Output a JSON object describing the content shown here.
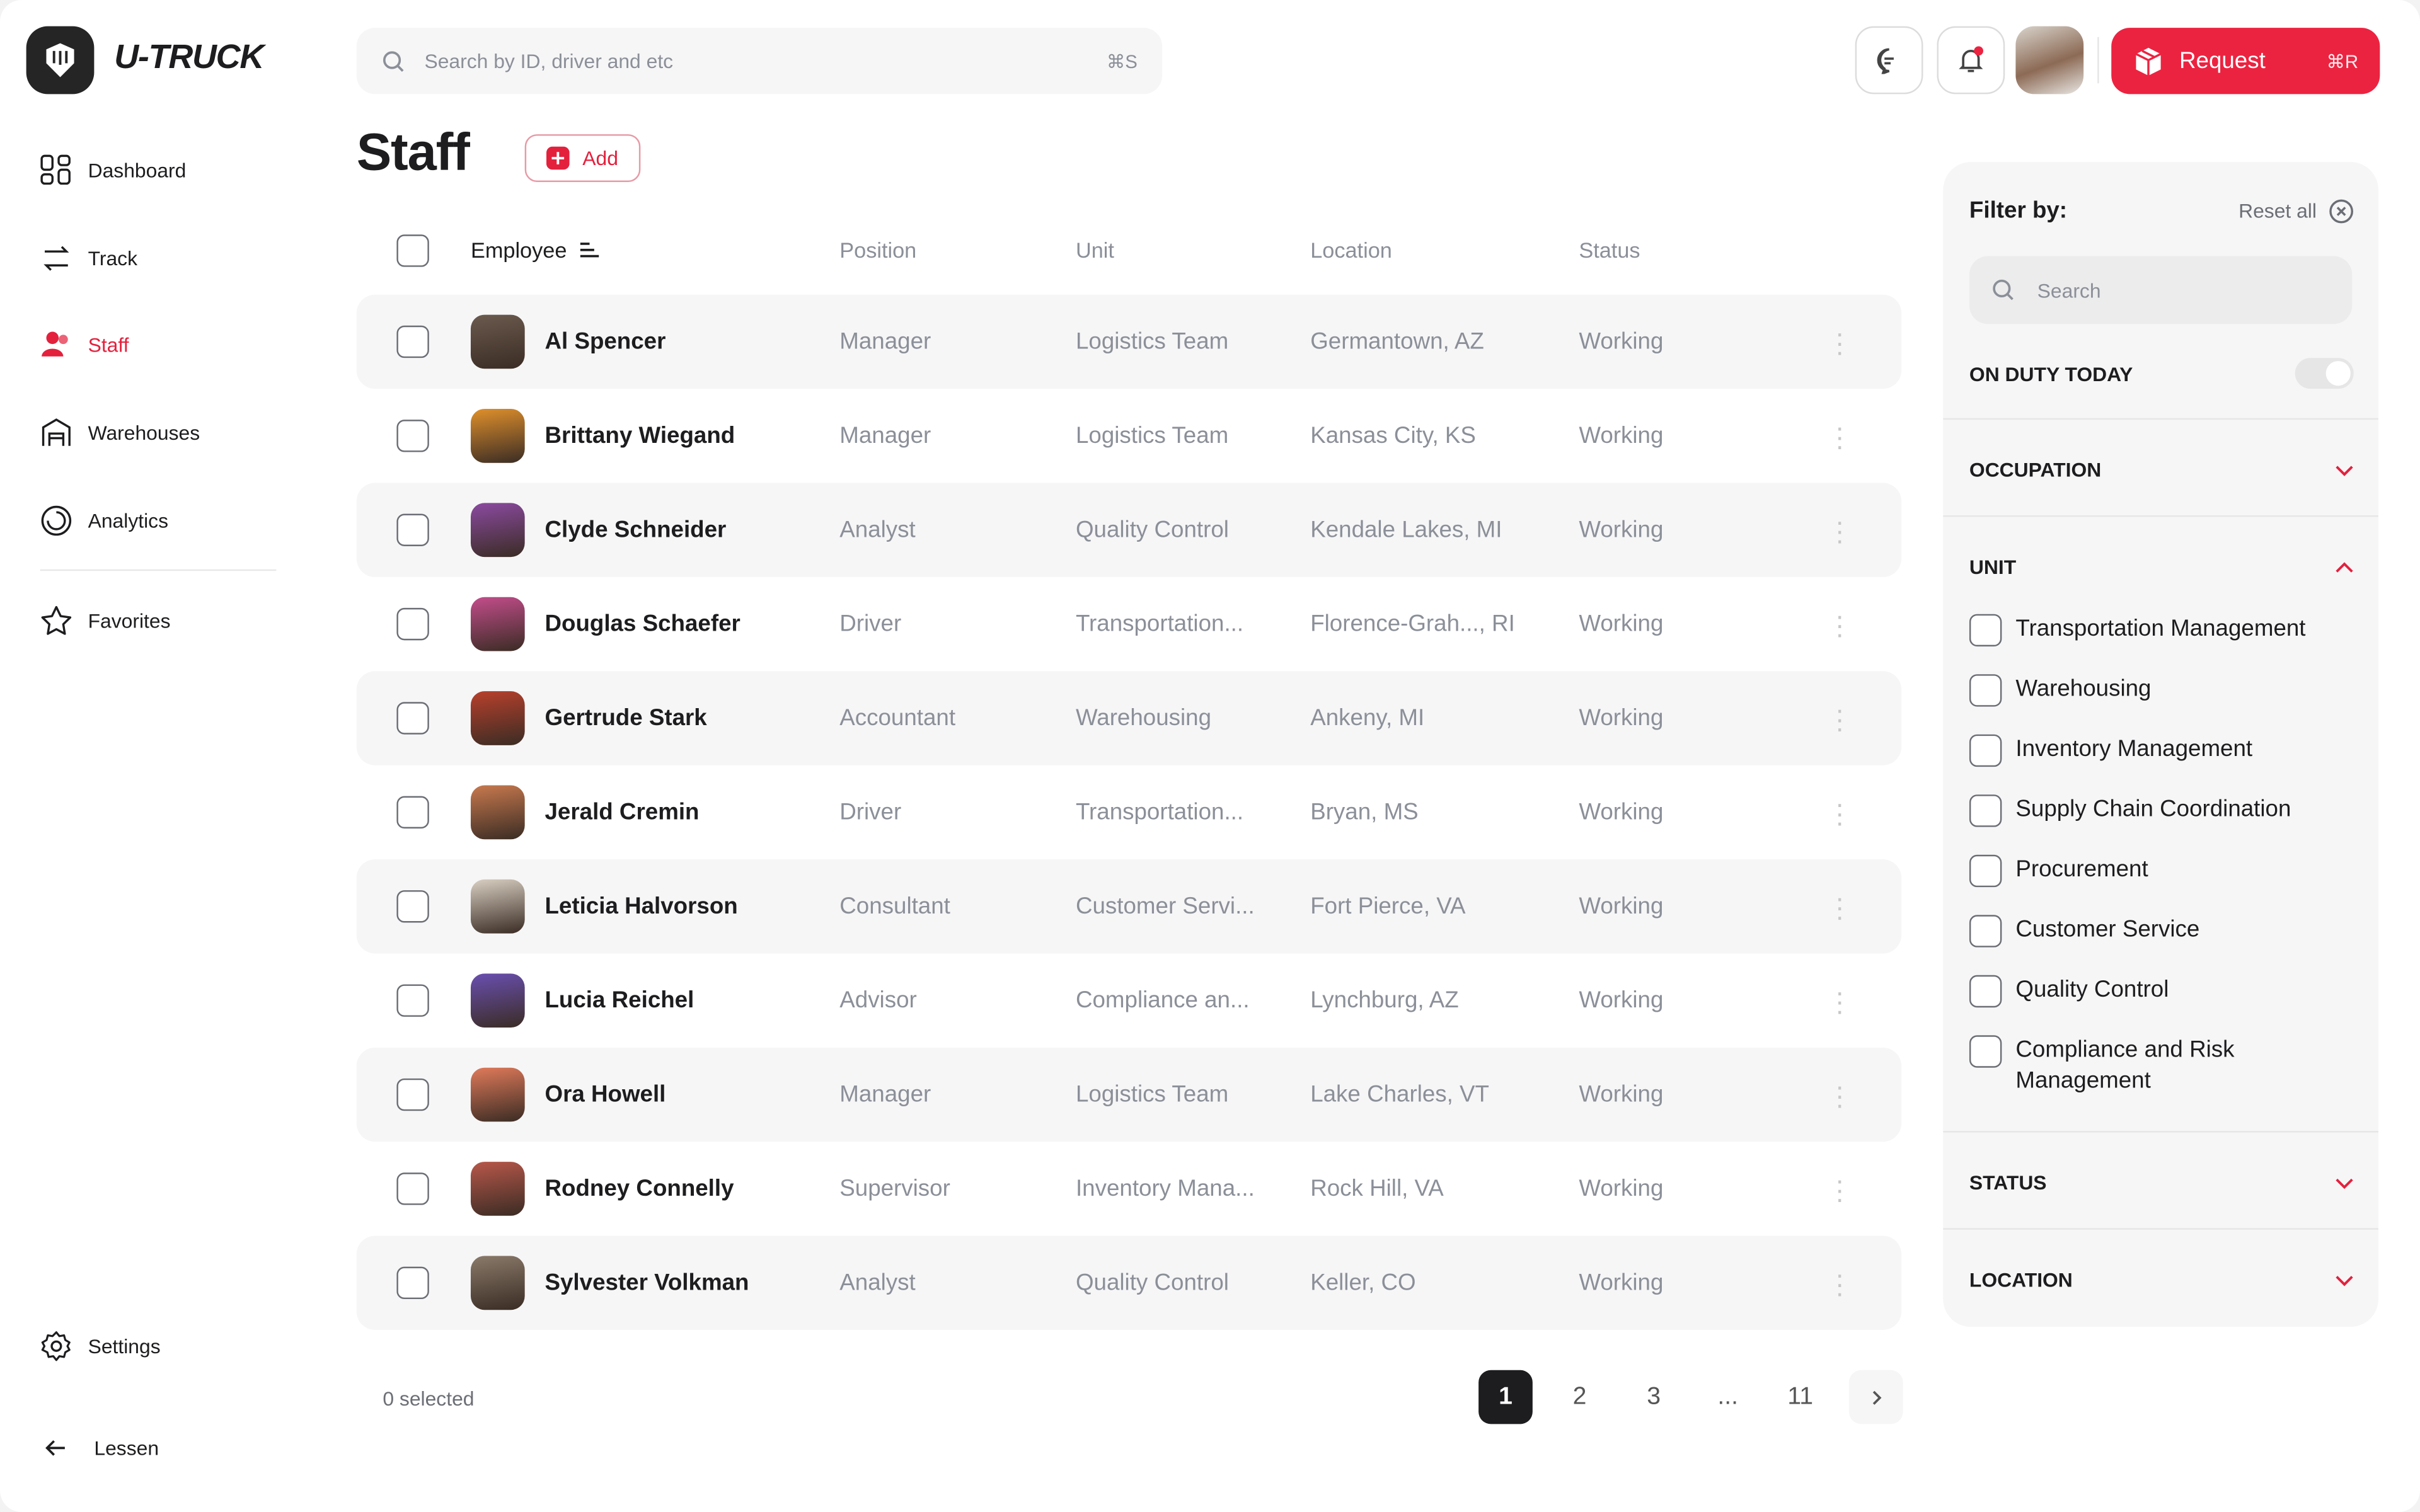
{
  "app": {
    "brand": "U-TRUCK",
    "accent": "#ec2340"
  },
  "header": {
    "search_placeholder": "Search by ID, driver and etc",
    "search_shortcut": "⌘S",
    "request_label": "Request",
    "request_shortcut": "⌘R"
  },
  "sidebar": {
    "items": [
      {
        "label": "Dashboard",
        "icon": "grid-icon"
      },
      {
        "label": "Track",
        "icon": "route-icon"
      },
      {
        "label": "Staff",
        "icon": "users-icon",
        "active": true
      },
      {
        "label": "Warehouses",
        "icon": "warehouse-icon"
      },
      {
        "label": "Analytics",
        "icon": "analytics-icon"
      },
      {
        "label": "Favorites",
        "icon": "star-icon"
      }
    ],
    "settings": "Settings",
    "collapse": "Lessen"
  },
  "page": {
    "title": "Staff",
    "add_label": "Add"
  },
  "table": {
    "columns": [
      "Employee",
      "Position",
      "Unit",
      "Location",
      "Status"
    ],
    "rows": [
      [
        "Al Spencer",
        "Manager",
        "Logistics Team",
        "Germantown, AZ",
        "Working"
      ],
      [
        "Brittany Wiegand",
        "Manager",
        "Logistics Team",
        "Kansas City, KS",
        "Working"
      ],
      [
        "Clyde Schneider",
        "Analyst",
        "Quality Control",
        "Kendale Lakes, MI",
        "Working"
      ],
      [
        "Douglas Schaefer",
        "Driver",
        "Transportation...",
        "Florence-Grah..., RI",
        "Working"
      ],
      [
        "Gertrude Stark",
        "Accountant",
        "Warehousing",
        "Ankeny, MI",
        "Working"
      ],
      [
        "Jerald Cremin",
        "Driver",
        "Transportation...",
        "Bryan, MS",
        "Working"
      ],
      [
        "Leticia Halvorson",
        "Consultant",
        "Customer Servi...",
        "Fort Pierce, VA",
        "Working"
      ],
      [
        "Lucia Reichel",
        "Advisor",
        "Compliance an...",
        "Lynchburg, AZ",
        "Working"
      ],
      [
        "Ora Howell",
        "Manager",
        "Logistics Team",
        "Lake Charles, VT",
        "Working"
      ],
      [
        "Rodney Connelly",
        "Supervisor",
        "Inventory Mana...",
        "Rock Hill, VA",
        "Working"
      ],
      [
        "Sylvester Volkman",
        "Analyst",
        "Quality Control",
        "Keller, CO",
        "Working"
      ]
    ],
    "selected": "0 selected"
  },
  "pagination": {
    "pages": [
      "1",
      "2",
      "3",
      "...",
      "11"
    ],
    "current": "1"
  },
  "filter": {
    "title": "Filter by:",
    "reset": "Reset all",
    "search_placeholder": "Search",
    "on_duty": "ON DUTY TODAY",
    "on_duty_enabled": false,
    "sections": [
      "OCCUPATION",
      "UNIT",
      "STATUS",
      "LOCATION"
    ],
    "unit_options": [
      "Transportation Management",
      "Warehousing",
      "Inventory Management",
      "Supply Chain Coordination",
      "Procurement",
      "Customer Service",
      "Quality Control",
      "Compliance and Risk Management"
    ]
  }
}
